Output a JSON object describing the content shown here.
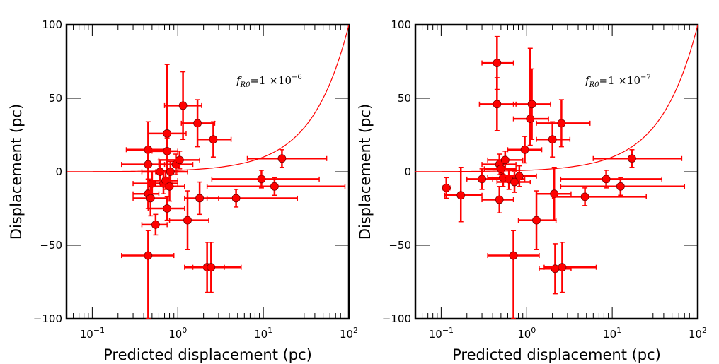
{
  "chart_data": [
    {
      "type": "scatter",
      "xscale": "log",
      "xlim": [
        0.05,
        100
      ],
      "ylim": [
        -100,
        100
      ],
      "xlabel": "Predicted displacement (pc)",
      "ylabel": "Displacement (pc)",
      "x_ticks": [
        {
          "value": 0.1,
          "base": "10",
          "exp": "−1"
        },
        {
          "value": 1,
          "base": "10",
          "exp": "0"
        },
        {
          "value": 10,
          "base": "10",
          "exp": "1"
        },
        {
          "value": 100,
          "base": "10",
          "exp": "2"
        }
      ],
      "y_ticks": [
        {
          "value": 100,
          "label": "100"
        },
        {
          "value": 50,
          "label": "50"
        },
        {
          "value": 0,
          "label": "0"
        },
        {
          "value": -50,
          "label": "−50"
        },
        {
          "value": -100,
          "label": "−100"
        }
      ],
      "annotation": {
        "f": "f",
        "sub": "R0",
        "mid": "=1 ×10",
        "exp": "−6"
      },
      "curve_max_y": 100,
      "marker_color": "#ff0000",
      "line_color": "#ff0000",
      "points": [
        {
          "x": 0.45,
          "y": -57,
          "xlo": 0.22,
          "xhi": 0.9,
          "ylo": -100,
          "yhi": -40
        },
        {
          "x": 0.45,
          "y": 15,
          "xlo": 0.25,
          "xhi": 0.75,
          "ylo": 5,
          "yhi": 34
        },
        {
          "x": 0.45,
          "y": 5,
          "xlo": 0.22,
          "xhi": 0.7,
          "ylo": -5,
          "yhi": 15
        },
        {
          "x": 0.45,
          "y": -15,
          "xlo": 0.3,
          "xhi": 0.6,
          "ylo": -25,
          "yhi": -5
        },
        {
          "x": 0.48,
          "y": -18,
          "xlo": 0.3,
          "xhi": 0.75,
          "ylo": -30,
          "yhi": -8
        },
        {
          "x": 0.5,
          "y": -8,
          "xlo": 0.3,
          "xhi": 0.8,
          "ylo": -15,
          "yhi": 0
        },
        {
          "x": 0.55,
          "y": -36,
          "xlo": 0.38,
          "xhi": 0.75,
          "ylo": -43,
          "yhi": -29
        },
        {
          "x": 0.62,
          "y": 0,
          "xlo": 0.38,
          "xhi": 1.0,
          "ylo": -6,
          "yhi": 8
        },
        {
          "x": 0.68,
          "y": -8,
          "xlo": 0.45,
          "xhi": 1.0,
          "ylo": -15,
          "yhi": 0
        },
        {
          "x": 0.72,
          "y": -6,
          "xlo": 0.5,
          "xhi": 1.0,
          "ylo": -12,
          "yhi": 0
        },
        {
          "x": 0.75,
          "y": 26,
          "xlo": 0.45,
          "xhi": 1.25,
          "ylo": 0,
          "yhi": 73
        },
        {
          "x": 0.75,
          "y": 14,
          "xlo": 0.5,
          "xhi": 1.0,
          "ylo": 5,
          "yhi": 23
        },
        {
          "x": 0.75,
          "y": -25,
          "xlo": 0.45,
          "xhi": 1.2,
          "ylo": -33,
          "yhi": -17
        },
        {
          "x": 0.8,
          "y": -10,
          "xlo": 0.5,
          "xhi": 1.2,
          "ylo": -20,
          "yhi": 0
        },
        {
          "x": 0.82,
          "y": 0,
          "xlo": 0.55,
          "xhi": 1.3,
          "ylo": -7,
          "yhi": 7
        },
        {
          "x": 0.95,
          "y": 5,
          "xlo": 0.6,
          "xhi": 1.5,
          "ylo": -2,
          "yhi": 12
        },
        {
          "x": 1.05,
          "y": 8,
          "xlo": 0.6,
          "xhi": 1.8,
          "ylo": 2,
          "yhi": 14
        },
        {
          "x": 1.15,
          "y": 45,
          "xlo": 0.7,
          "xhi": 1.9,
          "ylo": 22,
          "yhi": 68
        },
        {
          "x": 1.3,
          "y": -33,
          "xlo": 0.8,
          "xhi": 2.3,
          "ylo": -53,
          "yhi": -13
        },
        {
          "x": 1.7,
          "y": 33,
          "xlo": 1.1,
          "xhi": 2.7,
          "ylo": 17,
          "yhi": 49
        },
        {
          "x": 1.8,
          "y": -18,
          "xlo": 1.2,
          "xhi": 3.0,
          "ylo": -29,
          "yhi": -7
        },
        {
          "x": 2.2,
          "y": -65,
          "xlo": 1.5,
          "xhi": 3.5,
          "ylo": -82,
          "yhi": -48
        },
        {
          "x": 2.45,
          "y": -65,
          "xlo": 1.2,
          "xhi": 5.5,
          "ylo": -82,
          "yhi": -48
        },
        {
          "x": 2.6,
          "y": 22,
          "xlo": 1.7,
          "xhi": 4.2,
          "ylo": 10,
          "yhi": 34
        },
        {
          "x": 4.8,
          "y": -18,
          "xlo": 2.2,
          "xhi": 25,
          "ylo": -24,
          "yhi": -12
        },
        {
          "x": 9.5,
          "y": -5,
          "xlo": 2.5,
          "xhi": 45,
          "ylo": -11,
          "yhi": 1
        },
        {
          "x": 13.5,
          "y": -10,
          "xlo": 2.2,
          "xhi": 90,
          "ylo": -16,
          "yhi": -4
        },
        {
          "x": 16.5,
          "y": 9,
          "xlo": 6.5,
          "xhi": 55,
          "ylo": 3,
          "yhi": 15
        }
      ]
    },
    {
      "type": "scatter",
      "xscale": "log",
      "xlim": [
        0.05,
        100
      ],
      "ylim": [
        -100,
        100
      ],
      "xlabel": "Predicted displacement (pc)",
      "ylabel": "Displacement (pc)",
      "x_ticks": [
        {
          "value": 0.1,
          "base": "10",
          "exp": "−1"
        },
        {
          "value": 1,
          "base": "10",
          "exp": "0"
        },
        {
          "value": 10,
          "base": "10",
          "exp": "1"
        },
        {
          "value": 100,
          "base": "10",
          "exp": "2"
        }
      ],
      "y_ticks": [
        {
          "value": 100,
          "label": "100"
        },
        {
          "value": 50,
          "label": "50"
        },
        {
          "value": 0,
          "label": "0"
        },
        {
          "value": -50,
          "label": "−50"
        },
        {
          "value": -100,
          "label": "−100"
        }
      ],
      "annotation": {
        "f": "f",
        "sub": "R0",
        "mid": "=1 ×10",
        "exp": "−7"
      },
      "curve_max_y": 100,
      "marker_color": "#ff0000",
      "line_color": "#ff0000",
      "points": [
        {
          "x": 0.115,
          "y": -11,
          "xlo": 0.105,
          "xhi": 0.13,
          "ylo": -18,
          "yhi": -4
        },
        {
          "x": 0.17,
          "y": -16,
          "xlo": 0.11,
          "xhi": 0.3,
          "ylo": -34,
          "yhi": 3
        },
        {
          "x": 0.3,
          "y": -5,
          "xlo": 0.2,
          "xhi": 0.45,
          "ylo": -12,
          "yhi": 2
        },
        {
          "x": 0.45,
          "y": 74,
          "xlo": 0.3,
          "xhi": 0.7,
          "ylo": 56,
          "yhi": 92
        },
        {
          "x": 0.45,
          "y": 46,
          "xlo": 0.28,
          "xhi": 0.75,
          "ylo": 28,
          "yhi": 64
        },
        {
          "x": 0.48,
          "y": 5,
          "xlo": 0.3,
          "xhi": 0.75,
          "ylo": -2,
          "yhi": 12
        },
        {
          "x": 0.48,
          "y": -19,
          "xlo": 0.3,
          "xhi": 0.7,
          "ylo": -28,
          "yhi": -10
        },
        {
          "x": 0.5,
          "y": 2,
          "xlo": 0.32,
          "xhi": 0.75,
          "ylo": -4,
          "yhi": 8
        },
        {
          "x": 0.53,
          "y": -4,
          "xlo": 0.35,
          "xhi": 0.8,
          "ylo": -10,
          "yhi": 2
        },
        {
          "x": 0.56,
          "y": 8,
          "xlo": 0.35,
          "xhi": 0.9,
          "ylo": 2,
          "yhi": 14
        },
        {
          "x": 0.62,
          "y": -5,
          "xlo": 0.4,
          "xhi": 0.95,
          "ylo": -12,
          "yhi": 2
        },
        {
          "x": 0.7,
          "y": -57,
          "xlo": 0.35,
          "xhi": 1.4,
          "ylo": -100,
          "yhi": -40
        },
        {
          "x": 0.72,
          "y": -7,
          "xlo": 0.45,
          "xhi": 1.1,
          "ylo": -14,
          "yhi": 0
        },
        {
          "x": 0.82,
          "y": -3,
          "xlo": 0.55,
          "xhi": 1.3,
          "ylo": -10,
          "yhi": 4
        },
        {
          "x": 0.95,
          "y": 15,
          "xlo": 0.6,
          "xhi": 1.5,
          "ylo": 6,
          "yhi": 24
        },
        {
          "x": 1.1,
          "y": 36,
          "xlo": 0.7,
          "xhi": 1.8,
          "ylo": 18,
          "yhi": 84
        },
        {
          "x": 1.15,
          "y": 46,
          "xlo": 0.7,
          "xhi": 1.9,
          "ylo": 22,
          "yhi": 70
        },
        {
          "x": 1.3,
          "y": -33,
          "xlo": 0.8,
          "xhi": 2.2,
          "ylo": -53,
          "yhi": -13
        },
        {
          "x": 2.0,
          "y": 22,
          "xlo": 1.3,
          "xhi": 3.2,
          "ylo": 10,
          "yhi": 34
        },
        {
          "x": 2.1,
          "y": -15,
          "xlo": 1.3,
          "xhi": 3.3,
          "ylo": -33,
          "yhi": 3
        },
        {
          "x": 2.15,
          "y": -66,
          "xlo": 1.4,
          "xhi": 3.3,
          "ylo": -83,
          "yhi": -49
        },
        {
          "x": 2.55,
          "y": 33,
          "xlo": 1.3,
          "xhi": 5.5,
          "ylo": 17,
          "yhi": 49
        },
        {
          "x": 2.6,
          "y": -65,
          "xlo": 1.6,
          "xhi": 6.5,
          "ylo": -82,
          "yhi": -48
        },
        {
          "x": 4.8,
          "y": -17,
          "xlo": 2.0,
          "xhi": 25,
          "ylo": -23,
          "yhi": -11
        },
        {
          "x": 8.5,
          "y": -5,
          "xlo": 2.5,
          "xhi": 38,
          "ylo": -11,
          "yhi": 1
        },
        {
          "x": 12.5,
          "y": -10,
          "xlo": 2.5,
          "xhi": 70,
          "ylo": -16,
          "yhi": -4
        },
        {
          "x": 17.0,
          "y": 9,
          "xlo": 6.0,
          "xhi": 65,
          "ylo": 3,
          "yhi": 15
        }
      ]
    }
  ]
}
